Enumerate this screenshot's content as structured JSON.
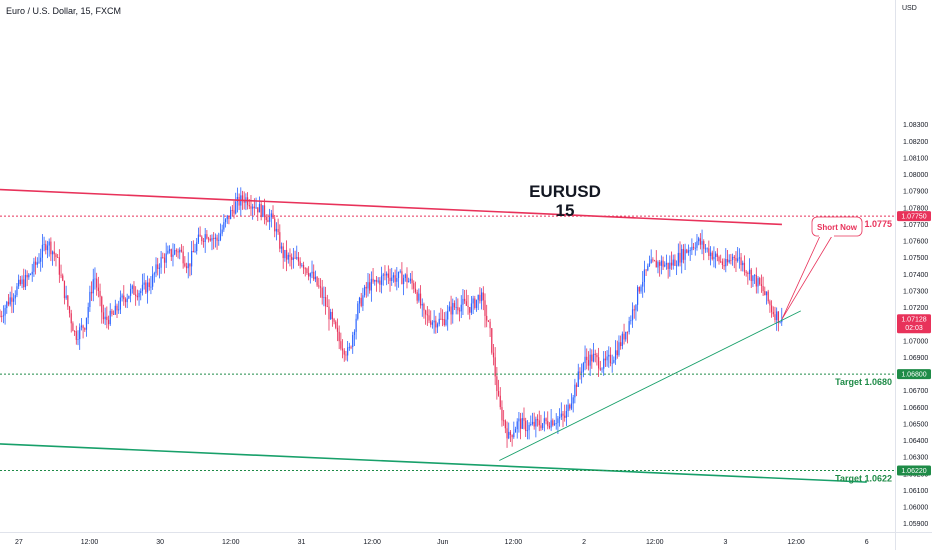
{
  "header": {
    "instrument": "Euro / U.S. Dollar, 15, FXCM",
    "currency": "USD"
  },
  "overlay": {
    "symbol": "EURUSD",
    "timeframe": "15",
    "short_label": "Short Now"
  },
  "chart_data": {
    "type": "candlestick",
    "title": "Euro / U.S. Dollar, 15, FXCM",
    "ylim": [
      1.0585,
      1.0905
    ],
    "y_ticks": [
      1.059,
      1.06,
      1.061,
      1.062,
      1.063,
      1.064,
      1.065,
      1.066,
      1.067,
      1.068,
      1.069,
      1.07,
      1.071,
      1.072,
      1.073,
      1.074,
      1.075,
      1.076,
      1.077,
      1.078,
      1.079,
      1.08,
      1.081,
      1.082,
      1.083
    ],
    "x_ticks": [
      "27",
      "12:00",
      "30",
      "12:00",
      "31",
      "12:00",
      "Jun",
      "12:00",
      "2",
      "12:00",
      "3",
      "12:00",
      "6"
    ],
    "price_path": [
      [
        0,
        1.0715
      ],
      [
        0.5,
        1.0725
      ],
      [
        1,
        1.0733
      ],
      [
        1.5,
        1.0738
      ],
      [
        2,
        1.0748
      ],
      [
        2.5,
        1.076
      ],
      [
        3,
        1.075
      ],
      [
        3.5,
        1.0725
      ],
      [
        4,
        1.0703
      ],
      [
        4.5,
        1.071
      ],
      [
        5,
        1.074
      ],
      [
        5.5,
        1.0712
      ],
      [
        6,
        1.0715
      ],
      [
        6.5,
        1.0725
      ],
      [
        7,
        1.073
      ],
      [
        7.5,
        1.073
      ],
      [
        8,
        1.0735
      ],
      [
        8.5,
        1.0748
      ],
      [
        9,
        1.0752
      ],
      [
        9.5,
        1.0755
      ],
      [
        10,
        1.0745
      ],
      [
        10.5,
        1.076
      ],
      [
        11,
        1.0765
      ],
      [
        11.5,
        1.076
      ],
      [
        12,
        1.0772
      ],
      [
        12.5,
        1.0782
      ],
      [
        13,
        1.0786
      ],
      [
        13.5,
        1.0782
      ],
      [
        14,
        1.0777
      ],
      [
        14.5,
        1.0772
      ],
      [
        15,
        1.0752
      ],
      [
        15.5,
        1.0748
      ],
      [
        16,
        1.0748
      ],
      [
        16.5,
        1.074
      ],
      [
        17,
        1.073
      ],
      [
        17.5,
        1.0715
      ],
      [
        18,
        1.07
      ],
      [
        18.5,
        1.0692
      ],
      [
        19,
        1.072
      ],
      [
        19.5,
        1.0733
      ],
      [
        20,
        1.0735
      ],
      [
        20.5,
        1.074
      ],
      [
        21,
        1.0738
      ],
      [
        21.5,
        1.0738
      ],
      [
        22,
        1.0733
      ],
      [
        22.5,
        1.0715
      ],
      [
        23,
        1.0712
      ],
      [
        23.5,
        1.0712
      ],
      [
        24,
        1.072
      ],
      [
        24.5,
        1.0722
      ],
      [
        25,
        1.072
      ],
      [
        25.5,
        1.0728
      ],
      [
        26,
        1.0705
      ],
      [
        26.5,
        1.066
      ],
      [
        27,
        1.0642
      ],
      [
        27.5,
        1.0651
      ],
      [
        28,
        1.0648
      ],
      [
        28.5,
        1.065
      ],
      [
        29,
        1.0651
      ],
      [
        29.5,
        1.0653
      ],
      [
        30,
        1.0654
      ],
      [
        30.5,
        1.0672
      ],
      [
        31,
        1.0688
      ],
      [
        31.5,
        1.069
      ],
      [
        32,
        1.0685
      ],
      [
        32.5,
        1.069
      ],
      [
        33,
        1.07
      ],
      [
        33.5,
        1.0715
      ],
      [
        34,
        1.0735
      ],
      [
        34.5,
        1.0745
      ],
      [
        35,
        1.0747
      ],
      [
        35.5,
        1.0745
      ],
      [
        36,
        1.075
      ],
      [
        36.5,
        1.0755
      ],
      [
        37,
        1.076
      ],
      [
        37.5,
        1.0755
      ],
      [
        38,
        1.075
      ],
      [
        38.5,
        1.0745
      ],
      [
        39,
        1.0752
      ],
      [
        39.5,
        1.0745
      ],
      [
        40,
        1.0738
      ],
      [
        40.5,
        1.073
      ],
      [
        41,
        1.0718
      ],
      [
        41.5,
        1.0712
      ]
    ],
    "channel_upper": [
      [
        0,
        1.0791
      ],
      [
        41.5,
        1.077
      ]
    ],
    "channel_lower": [
      [
        0,
        1.0638
      ],
      [
        46,
        1.0615
      ]
    ],
    "trendline_support": [
      [
        26.5,
        1.0628
      ],
      [
        42.5,
        1.0718
      ]
    ],
    "levels": [
      {
        "name": "Stop",
        "value": 1.0775,
        "label": "Stop 1.0775",
        "axis_label": "1.07750",
        "color": "#e8325a"
      },
      {
        "name": "Target",
        "value": 1.068,
        "label": "Target 1.0680",
        "axis_label": "1.06800",
        "color": "#1e8b47"
      },
      {
        "name": "Target",
        "value": 1.0622,
        "label": "Target 1.0622",
        "axis_label": "1.06220",
        "color": "#1e8b47"
      }
    ],
    "last_price": {
      "value": 1.0713,
      "label": "1.07128",
      "countdown": "02:03",
      "color": "#e8325a"
    },
    "colors": {
      "up": "#2962ff",
      "down": "#e8325a",
      "upper_line": "#e8325a",
      "lower_line": "#18a06a"
    }
  }
}
